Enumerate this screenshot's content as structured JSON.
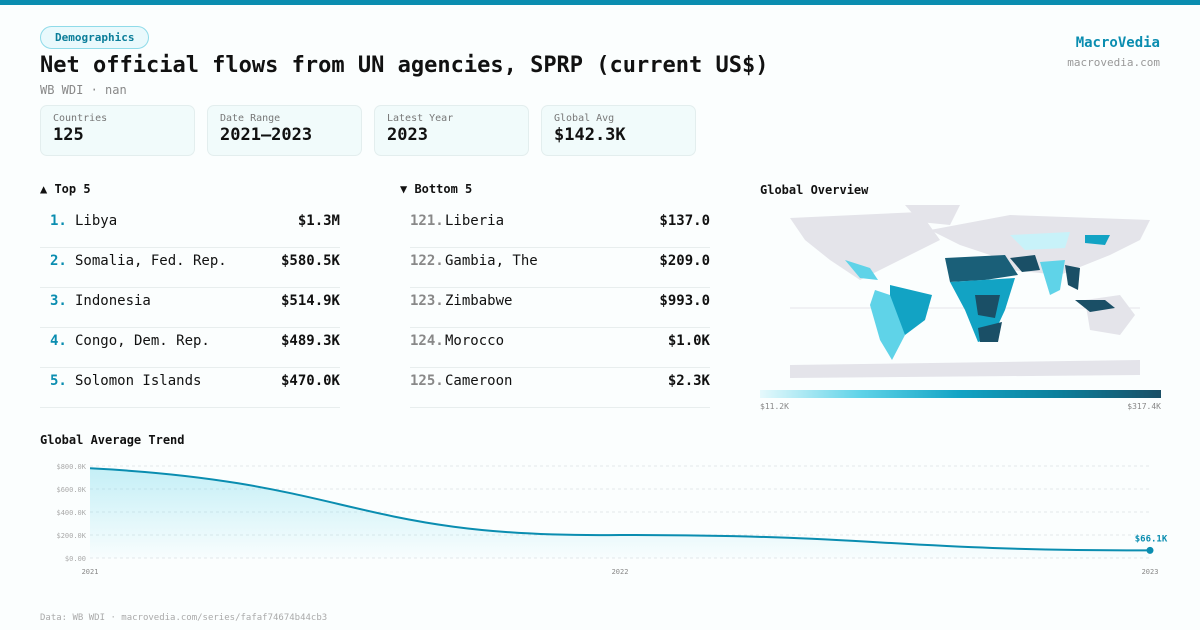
{
  "header": {
    "category": "Demographics",
    "title": "Net official flows from UN agencies, SPRP (current US$)",
    "subtitle": "WB WDI · nan",
    "brand": "MacroVedia",
    "brand_url": "macrovedia.com"
  },
  "stats": [
    {
      "label": "Countries",
      "value": "125"
    },
    {
      "label": "Date Range",
      "value": "2021–2023"
    },
    {
      "label": "Latest Year",
      "value": "2023"
    },
    {
      "label": "Global Avg",
      "value": "$142.3K"
    }
  ],
  "top5": {
    "title": "▲ Top 5",
    "items": [
      {
        "rank": "1.",
        "name": "Libya",
        "value": "$1.3M"
      },
      {
        "rank": "2.",
        "name": "Somalia, Fed. Rep.",
        "value": "$580.5K"
      },
      {
        "rank": "3.",
        "name": "Indonesia",
        "value": "$514.9K"
      },
      {
        "rank": "4.",
        "name": "Congo, Dem. Rep.",
        "value": "$489.3K"
      },
      {
        "rank": "5.",
        "name": "Solomon Islands",
        "value": "$470.0K"
      }
    ]
  },
  "bottom5": {
    "title": "▼ Bottom 5",
    "items": [
      {
        "rank": "121.",
        "name": "Liberia",
        "value": "$137.0"
      },
      {
        "rank": "122.",
        "name": "Gambia, The",
        "value": "$209.0"
      },
      {
        "rank": "123.",
        "name": "Zimbabwe",
        "value": "$993.0"
      },
      {
        "rank": "124.",
        "name": "Morocco",
        "value": "$1.0K"
      },
      {
        "rank": "125.",
        "name": "Cameroon",
        "value": "$2.3K"
      }
    ]
  },
  "map": {
    "title": "Global Overview",
    "legend_min": "$11.2K",
    "legend_max": "$317.4K",
    "colors": [
      "#e6f9fc",
      "#5fd3e8",
      "#12a3c4",
      "#1a4f66"
    ]
  },
  "chart_data": {
    "type": "area",
    "title": "Global Average Trend",
    "x": [
      "2021",
      "2022",
      "2023"
    ],
    "values": [
      780000,
      200000,
      66100
    ],
    "ylim": [
      0,
      800000
    ],
    "yticks": [
      "$0.00",
      "$200.0K",
      "$400.0K",
      "$600.0K",
      "$800.0K"
    ],
    "ytick_values": [
      0,
      200000,
      400000,
      600000,
      800000
    ],
    "last_label": "$66.1K",
    "grid": true,
    "color": "#0a8db0"
  },
  "footer": "Data: WB WDI · macrovedia.com/series/fafaf74674b44cb3"
}
